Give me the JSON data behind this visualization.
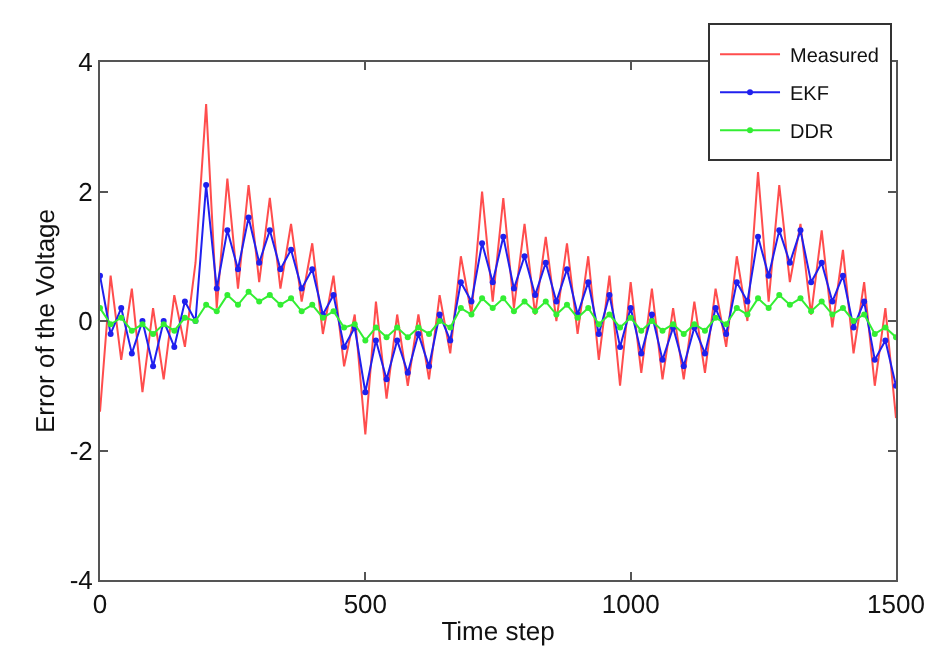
{
  "chart_data": {
    "type": "line",
    "xlabel": "Time step",
    "ylabel": "Error of the Voltage",
    "x": [
      0,
      20,
      40,
      60,
      80,
      100,
      120,
      140,
      160,
      180,
      200,
      220,
      240,
      260,
      280,
      300,
      320,
      340,
      360,
      380,
      400,
      420,
      440,
      460,
      480,
      500,
      520,
      540,
      560,
      580,
      600,
      620,
      640,
      660,
      680,
      700,
      720,
      740,
      760,
      780,
      800,
      820,
      840,
      860,
      880,
      900,
      920,
      940,
      960,
      980,
      1000,
      1020,
      1040,
      1060,
      1080,
      1100,
      1120,
      1140,
      1160,
      1180,
      1200,
      1220,
      1240,
      1260,
      1280,
      1300,
      1320,
      1340,
      1360,
      1380,
      1400,
      1420,
      1440,
      1460,
      1480,
      1500
    ],
    "series": [
      {
        "name": "Measured",
        "color": "#ff4d4d",
        "marker": "none",
        "values": [
          -1.4,
          0.7,
          -0.6,
          0.5,
          -1.1,
          0.2,
          -0.9,
          0.4,
          -0.4,
          0.9,
          3.35,
          0.2,
          2.2,
          0.5,
          2.1,
          0.6,
          1.9,
          0.5,
          1.5,
          0.3,
          1.2,
          -0.2,
          0.7,
          -0.7,
          0.1,
          -1.75,
          0.3,
          -1.2,
          0.1,
          -1.0,
          0.1,
          -0.9,
          0.4,
          -0.5,
          1.0,
          0.1,
          2.0,
          0.3,
          1.9,
          0.2,
          1.5,
          0.1,
          1.3,
          0.0,
          1.2,
          -0.2,
          1.0,
          -0.6,
          0.7,
          -1.0,
          0.6,
          -0.8,
          0.5,
          -0.9,
          0.2,
          -0.9,
          0.3,
          -0.8,
          0.5,
          -0.4,
          1.0,
          0.0,
          2.3,
          0.3,
          2.1,
          0.6,
          1.5,
          0.1,
          1.4,
          -0.1,
          1.1,
          -0.5,
          0.6,
          -1.0,
          0.2,
          -1.5
        ]
      },
      {
        "name": "EKF",
        "color": "#2020ee",
        "marker": "circle",
        "values": [
          0.7,
          -0.2,
          0.2,
          -0.5,
          0.0,
          -0.7,
          0.0,
          -0.4,
          0.3,
          0.0,
          2.1,
          0.5,
          1.4,
          0.8,
          1.6,
          0.9,
          1.4,
          0.8,
          1.1,
          0.5,
          0.8,
          0.1,
          0.4,
          -0.4,
          -0.1,
          -1.1,
          -0.3,
          -0.9,
          -0.3,
          -0.8,
          -0.2,
          -0.7,
          0.1,
          -0.3,
          0.6,
          0.3,
          1.2,
          0.6,
          1.3,
          0.5,
          1.0,
          0.4,
          0.9,
          0.3,
          0.8,
          0.1,
          0.6,
          -0.2,
          0.4,
          -0.4,
          0.2,
          -0.5,
          0.1,
          -0.6,
          -0.1,
          -0.7,
          -0.1,
          -0.5,
          0.2,
          -0.2,
          0.6,
          0.3,
          1.3,
          0.7,
          1.4,
          0.9,
          1.4,
          0.6,
          0.9,
          0.3,
          0.7,
          -0.1,
          0.3,
          -0.6,
          -0.3,
          -1.0
        ]
      },
      {
        "name": "DDR",
        "color": "#33ee33",
        "marker": "circle",
        "values": [
          0.2,
          -0.05,
          0.05,
          -0.15,
          -0.05,
          -0.2,
          -0.05,
          -0.15,
          0.05,
          0.0,
          0.25,
          0.15,
          0.4,
          0.25,
          0.45,
          0.3,
          0.4,
          0.25,
          0.35,
          0.15,
          0.25,
          0.05,
          0.15,
          -0.1,
          -0.05,
          -0.3,
          -0.1,
          -0.25,
          -0.1,
          -0.25,
          -0.1,
          -0.2,
          0.0,
          -0.1,
          0.2,
          0.1,
          0.35,
          0.2,
          0.35,
          0.15,
          0.3,
          0.15,
          0.3,
          0.1,
          0.25,
          0.05,
          0.2,
          -0.05,
          0.1,
          -0.1,
          0.05,
          -0.15,
          0.0,
          -0.15,
          -0.05,
          -0.2,
          -0.05,
          -0.15,
          0.05,
          -0.05,
          0.2,
          0.1,
          0.35,
          0.2,
          0.4,
          0.25,
          0.35,
          0.15,
          0.3,
          0.1,
          0.2,
          0.0,
          0.1,
          -0.2,
          -0.1,
          -0.25
        ]
      }
    ],
    "xlim": [
      0,
      1500
    ],
    "xticks": [
      0,
      500,
      1000,
      1500
    ],
    "ylim": [
      -4,
      4
    ],
    "yticks": [
      -4,
      -2,
      0,
      2,
      4
    ],
    "legend": "top right"
  }
}
